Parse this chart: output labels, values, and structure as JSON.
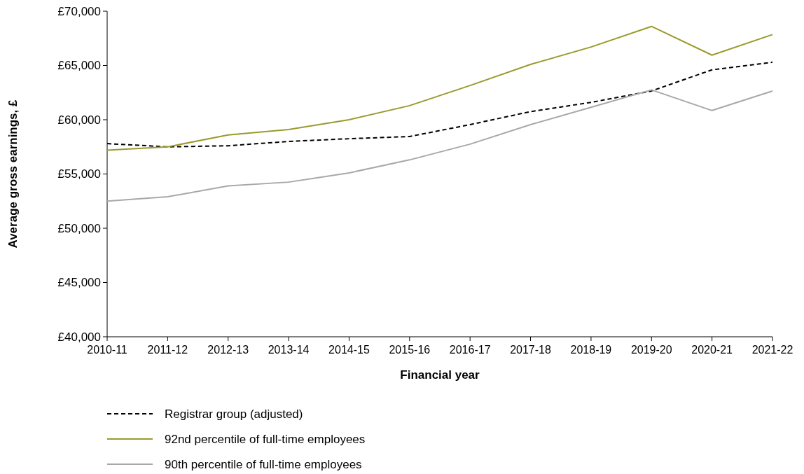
{
  "chart_data": {
    "type": "line",
    "xlabel": "Financial year",
    "ylabel": "Average gross earnings, £",
    "categories": [
      "2010-11",
      "2011-12",
      "2012-13",
      "2013-14",
      "2014-15",
      "2015-16",
      "2016-17",
      "2017-18",
      "2018-19",
      "2019-20",
      "2020-21",
      "2021-22"
    ],
    "ylim": [
      40000,
      70000
    ],
    "yticks": [
      {
        "value": 40000,
        "label": "£40,000"
      },
      {
        "value": 45000,
        "label": "£45,000"
      },
      {
        "value": 50000,
        "label": "£50,000"
      },
      {
        "value": 55000,
        "label": "£55,000"
      },
      {
        "value": 60000,
        "label": "£60,000"
      },
      {
        "value": 65000,
        "label": "£65,000"
      },
      {
        "value": 70000,
        "label": "£70,000"
      }
    ],
    "grid": false,
    "legend": "bottom",
    "marker": "none",
    "series": [
      {
        "name": "Registrar group (adjusted)",
        "color": "#000000",
        "line_style": "dashed",
        "values": [
          57800,
          57500,
          57600,
          58000,
          58250,
          58450,
          59550,
          60750,
          61600,
          62650,
          64600,
          65300
        ]
      },
      {
        "name": "92nd percentile of full-time employees",
        "color": "#9a9a2c",
        "line_style": "solid",
        "values": [
          57200,
          57500,
          58600,
          59100,
          60000,
          61300,
          63150,
          65100,
          66700,
          68600,
          65950,
          67850
        ]
      },
      {
        "name": "90th percentile of full-time employees",
        "color": "#a8a8a8",
        "line_style": "solid",
        "values": [
          52500,
          52900,
          53900,
          54250,
          55100,
          56300,
          57750,
          59550,
          61150,
          62750,
          60850,
          62650
        ]
      }
    ]
  }
}
